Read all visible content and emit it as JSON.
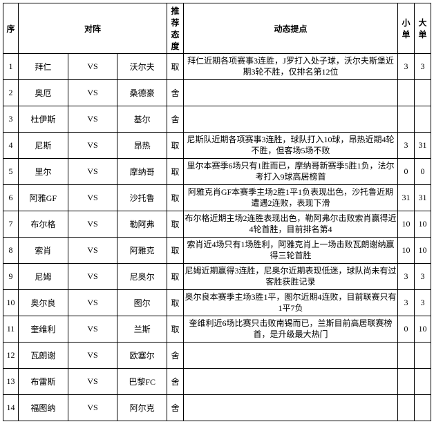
{
  "headers": {
    "seq": "序",
    "match": "对阵",
    "rec": "推荐态度",
    "tip": "动态提点",
    "small": "小单",
    "big": "大单"
  },
  "vs_label": "VS",
  "rows": [
    {
      "seq": "1",
      "home": "拜仁",
      "away": "沃尔夫",
      "rec": "取",
      "tip": "拜仁近期各项赛事3连胜，J罗打入处子球，沃尔夫斯堡近期3轮不胜，仅排名第12位",
      "small": "3",
      "big": "3"
    },
    {
      "seq": "2",
      "home": "奥厄",
      "away": "桑德豪",
      "rec": "舍",
      "tip": "",
      "small": "",
      "big": ""
    },
    {
      "seq": "3",
      "home": "杜伊斯",
      "away": "基尔",
      "rec": "舍",
      "tip": "",
      "small": "",
      "big": ""
    },
    {
      "seq": "4",
      "home": "尼斯",
      "away": "昂热",
      "rec": "取",
      "tip": "尼斯队近期各项赛事3连胜，球队打入10球，昂热近期4轮不胜，但客场5场不败",
      "small": "3",
      "big": "31"
    },
    {
      "seq": "5",
      "home": "里尔",
      "away": "摩纳哥",
      "rec": "取",
      "tip": "里尔本赛季6场只有1胜而已，摩纳哥新赛季5胜1负，法尔考打入9球高居榜首",
      "small": "0",
      "big": "0"
    },
    {
      "seq": "6",
      "home": "阿雅GF",
      "away": "沙托鲁",
      "rec": "取",
      "tip": "阿雅克肖GF本赛季主场2胜1平1负表现出色，沙托鲁近期遭遇2连败，表现下滑",
      "small": "31",
      "big": "31"
    },
    {
      "seq": "7",
      "home": "布尔格",
      "away": "勒阿弗",
      "rec": "取",
      "tip": "布尔格近期主场2连胜表现出色，勒阿弗尔击败索肖赢得近4轮首胜，目前排名第4",
      "small": "10",
      "big": "10"
    },
    {
      "seq": "8",
      "home": "索肖",
      "away": "阿雅克",
      "rec": "取",
      "tip": "索肖近4场只有1场胜利，阿雅克肖上一场击败瓦朗谢纳赢得三轮首胜",
      "small": "10",
      "big": "10"
    },
    {
      "seq": "9",
      "home": "尼姆",
      "away": "尼奥尔",
      "rec": "取",
      "tip": "尼姆近期赢得3连胜，尼奥尔近期表现低迷，球队尚未有过客胜获胜记录",
      "small": "3",
      "big": "3"
    },
    {
      "seq": "10",
      "home": "奥尔良",
      "away": "图尔",
      "rec": "取",
      "tip": "奥尔良本赛季主场3胜1平，图尔近期4连败，目前联赛只有1平7负",
      "small": "3",
      "big": "3"
    },
    {
      "seq": "11",
      "home": "奎维利",
      "away": "兰斯",
      "rec": "取",
      "tip": "奎维利近6场比赛只击败南锡而已，兰斯目前高居联赛榜首，是升级最大热门",
      "small": "0",
      "big": "10"
    },
    {
      "seq": "12",
      "home": "瓦朗谢",
      "away": "欧塞尔",
      "rec": "舍",
      "tip": "",
      "small": "",
      "big": ""
    },
    {
      "seq": "13",
      "home": "布雷斯",
      "away": "巴黎FC",
      "rec": "舍",
      "tip": "",
      "small": "",
      "big": ""
    },
    {
      "seq": "14",
      "home": "福图纳",
      "away": "阿尔克",
      "rec": "舍",
      "tip": "",
      "small": "",
      "big": ""
    }
  ]
}
